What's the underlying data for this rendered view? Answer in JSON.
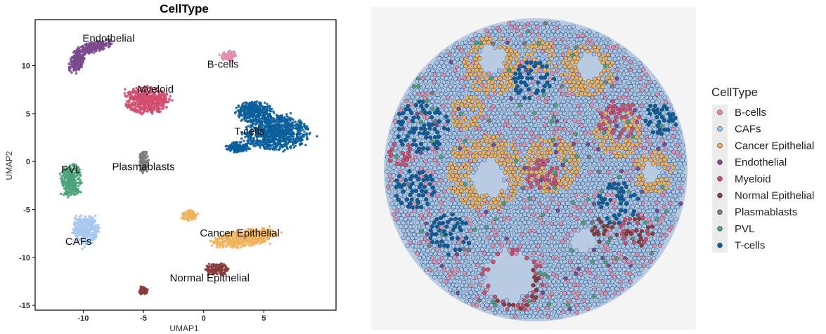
{
  "chart_data": [
    {
      "type": "scatter",
      "title": "CellType",
      "xlabel": "UMAP1",
      "ylabel": "UMAP2",
      "xlim": [
        -14,
        11
      ],
      "ylim": [
        -15.5,
        14.8
      ],
      "xticks": [
        -10,
        -5,
        0,
        5
      ],
      "yticks": [
        10,
        5,
        0,
        -5,
        -10,
        -15
      ],
      "grid": false,
      "series": [
        {
          "name": "Endothelial",
          "color": "#7b4a8e",
          "label_x": -7.9,
          "label_y": 12.5,
          "clusters": [
            [
              -9.2,
              11.9,
              1.4,
              0.7,
              0.4
            ],
            [
              -10.6,
              10.3,
              0.6,
              0.9,
              0.2
            ]
          ]
        },
        {
          "name": "B-cells",
          "color": "#e18fb0",
          "label_x": 1.6,
          "label_y": 9.8,
          "clusters": [
            [
              2.1,
              11.0,
              0.6,
              0.5,
              0
            ]
          ]
        },
        {
          "name": "Myeloid",
          "color": "#d24d6e",
          "label_x": -4.0,
          "label_y": 7.2,
          "clusters": [
            [
              -4.7,
              6.4,
              1.7,
              1.3,
              0
            ]
          ]
        },
        {
          "name": "T-cells",
          "color": "#0b5e9c",
          "label_x": 3.8,
          "label_y": 2.8,
          "clusters": [
            [
              6.0,
              3.0,
              2.5,
              1.6,
              0
            ],
            [
              4.2,
              5.2,
              1.4,
              1.0,
              0
            ],
            [
              2.8,
              1.5,
              0.9,
              0.5,
              0
            ]
          ]
        },
        {
          "name": "Plasmablasts",
          "color": "#7d7d7d",
          "label_x": -5.0,
          "label_y": -0.9,
          "clusters": [
            [
              -5.0,
              0.0,
              0.35,
              1.1,
              0
            ]
          ]
        },
        {
          "name": "PVL",
          "color": "#4da37a",
          "label_x": -11.0,
          "label_y": -1.2,
          "clusters": [
            [
              -11.0,
              -2.0,
              0.8,
              1.6,
              0
            ]
          ]
        },
        {
          "name": "CAFs",
          "color": "#a6c8ee",
          "label_x": -10.4,
          "label_y": -8.7,
          "clusters": [
            [
              -9.8,
              -7.1,
              1.0,
              1.4,
              0
            ]
          ]
        },
        {
          "name": "Cancer Epithelial",
          "color": "#f2b15b",
          "label_x": 3.0,
          "label_y": -7.8,
          "clusters": [
            [
              3.3,
              -8.0,
              2.4,
              0.9,
              0.25
            ],
            [
              -1.2,
              -5.6,
              0.6,
              0.5,
              0
            ]
          ]
        },
        {
          "name": "Normal Epithelial",
          "color": "#8a3c3c",
          "label_x": 0.5,
          "label_y": -12.5,
          "clusters": [
            [
              1.1,
              -11.3,
              0.9,
              0.6,
              0
            ],
            [
              -5.0,
              -13.5,
              0.35,
              0.4,
              0
            ]
          ]
        }
      ]
    },
    {
      "type": "scatter",
      "title": "",
      "legend_title": "CellType",
      "legend_placement": "right",
      "categories": [
        "B-cells",
        "CAFs",
        "Cancer Epithelial",
        "Endothelial",
        "Myeloid",
        "Normal Epithelial",
        "Plasmablasts",
        "PVL",
        "T-cells"
      ],
      "colors": [
        "#e18fb0",
        "#a6c8ee",
        "#f2b15b",
        "#7b4a8e",
        "#d24d6e",
        "#8a3c3c",
        "#7d7d7d",
        "#4da37a",
        "#0b5e9c"
      ]
    }
  ]
}
